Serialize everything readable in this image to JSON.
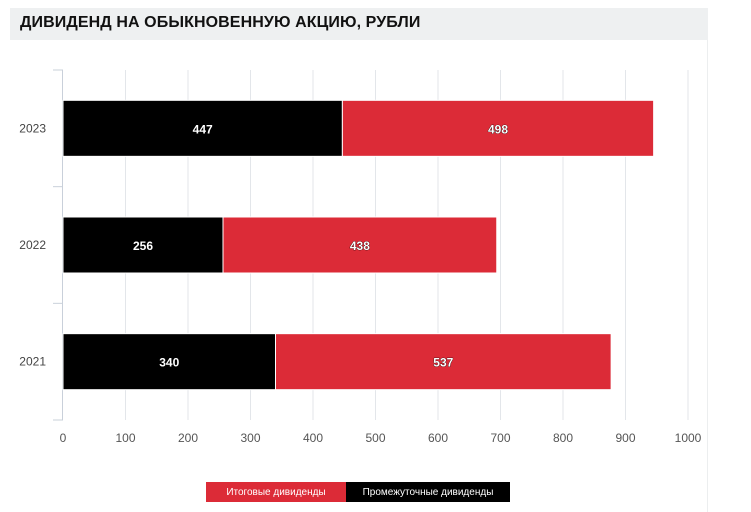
{
  "header": {
    "title": "ДИВИДЕНД НА ОБЫКНОВЕННУЮ АКЦИЮ, РУБЛИ"
  },
  "chart_data": {
    "type": "bar",
    "orientation": "horizontal",
    "stacked": true,
    "title": "ДИВИДЕНД НА ОБЫКНОВЕННУЮ АКЦИЮ, РУБЛИ",
    "categories": [
      "2023",
      "2022",
      "2021"
    ],
    "series": [
      {
        "name": "Промежуточные дивиденды",
        "color": "#000000",
        "values": [
          447,
          256,
          340
        ]
      },
      {
        "name": "Итоговые дивиденды",
        "color": "#dc2b37",
        "values": [
          498,
          438,
          537
        ]
      }
    ],
    "xlim": [
      0,
      1000
    ],
    "xticks": [
      "0",
      "100",
      "200",
      "300",
      "400",
      "500",
      "600",
      "700",
      "800",
      "900",
      "1000"
    ],
    "grid": true,
    "legend_position": "bottom"
  },
  "legend": [
    {
      "label": "Итоговые дивиденды",
      "color": "#dc2b37",
      "text_color": "#ffffff"
    },
    {
      "label": "Промежуточные дивиденды",
      "color": "#000000",
      "text_color": "#ffffff"
    }
  ]
}
